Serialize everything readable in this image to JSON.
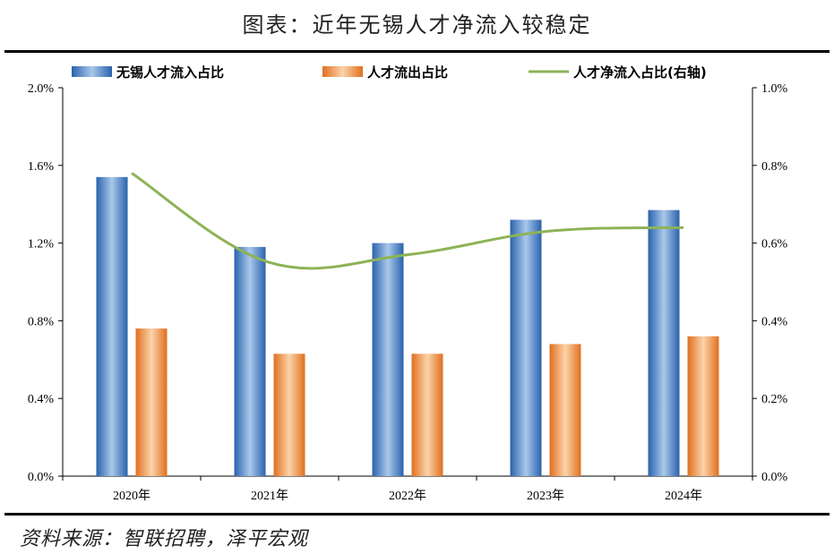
{
  "header": {
    "title": "图表：近年无锡人才净流入较稳定"
  },
  "footer": {
    "source": "资料来源：智联招聘，泽平宏观"
  },
  "chart_data": {
    "type": "bar",
    "title": "图表：近年无锡人才净流入较稳定",
    "categories": [
      "2020年",
      "2021年",
      "2022年",
      "2023年",
      "2024年"
    ],
    "series": [
      {
        "name": "无锡人才流入占比",
        "type": "bar",
        "axis": "left",
        "color": "#3a78c2",
        "values": [
          1.54,
          1.18,
          1.2,
          1.32,
          1.37
        ]
      },
      {
        "name": "人才流出占比",
        "type": "bar",
        "axis": "left",
        "color": "#ee8a3c",
        "values": [
          0.76,
          0.63,
          0.63,
          0.68,
          0.72
        ]
      },
      {
        "name": "人才净流入占比(右轴)",
        "type": "line",
        "axis": "right",
        "color": "#8db356",
        "values": [
          0.78,
          0.55,
          0.57,
          0.63,
          0.64
        ]
      }
    ],
    "yleft": {
      "lim": [
        0,
        2.0
      ],
      "ticks": [
        0,
        0.4,
        0.8,
        1.2,
        1.6,
        2.0
      ],
      "tick_labels": [
        "0.0%",
        "0.4%",
        "0.8%",
        "1.2%",
        "1.6%",
        "2.0%"
      ]
    },
    "yright": {
      "lim": [
        0,
        1.0
      ],
      "ticks": [
        0,
        0.2,
        0.4,
        0.6,
        0.8,
        1.0
      ],
      "tick_labels": [
        "0.0%",
        "0.2%",
        "0.4%",
        "0.6%",
        "0.8%",
        "1.0%"
      ]
    },
    "xlabel": "",
    "ylabel": "",
    "grid": false,
    "legend_position": "top"
  }
}
